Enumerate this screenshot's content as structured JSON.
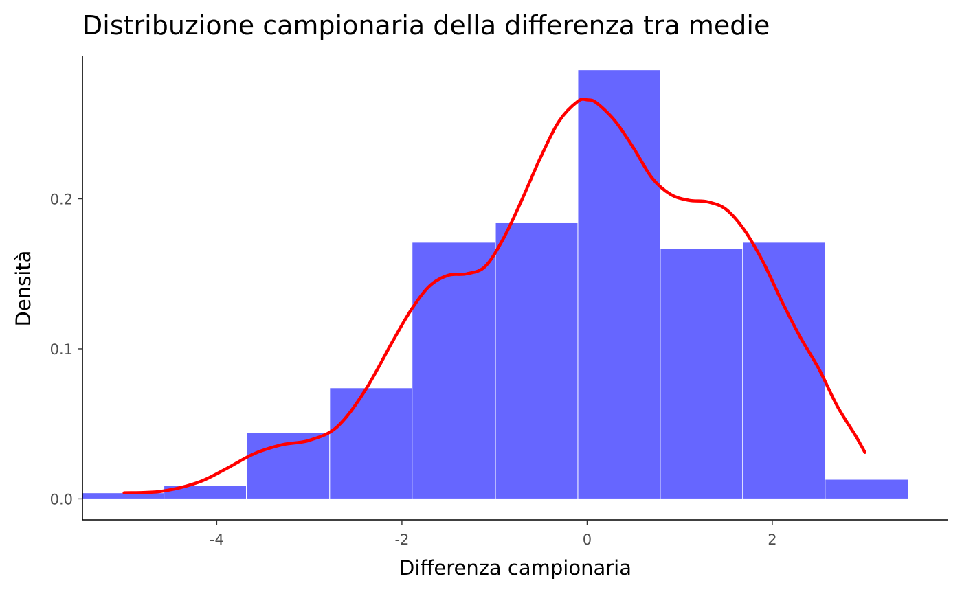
{
  "chart_data": {
    "type": "histogram",
    "title": "Distribuzione campionaria della differenza tra medie",
    "xlabel": "Differenza campionaria",
    "ylabel": "Densità",
    "xlim": [
      -5.45,
      3.9
    ],
    "ylim": [
      -0.014,
      0.295
    ],
    "x_ticks": [
      {
        "value": -4,
        "label": "-4"
      },
      {
        "value": -2,
        "label": "-2"
      },
      {
        "value": 0,
        "label": "0"
      },
      {
        "value": 2,
        "label": "2"
      }
    ],
    "y_ticks": [
      {
        "value": 0.0,
        "label": "0.0"
      },
      {
        "value": 0.1,
        "label": "0.1"
      },
      {
        "value": 0.2,
        "label": "0.2"
      }
    ],
    "grid": false,
    "legend": "none",
    "bars": [
      {
        "x0": -5.46,
        "x1": -4.57,
        "density": 0.004
      },
      {
        "x0": -4.57,
        "x1": -3.68,
        "density": 0.009
      },
      {
        "x0": -3.68,
        "x1": -2.78,
        "density": 0.044
      },
      {
        "x0": -2.78,
        "x1": -1.89,
        "density": 0.074
      },
      {
        "x0": -1.89,
        "x1": -0.99,
        "density": 0.171
      },
      {
        "x0": -0.99,
        "x1": -0.1,
        "density": 0.184
      },
      {
        "x0": -0.1,
        "x1": 0.79,
        "density": 0.286
      },
      {
        "x0": 0.79,
        "x1": 1.68,
        "density": 0.167
      },
      {
        "x0": 1.68,
        "x1": 2.57,
        "density": 0.171
      },
      {
        "x0": 2.57,
        "x1": 3.47,
        "density": 0.013
      }
    ],
    "density_curve": {
      "x": [
        -5.0,
        -4.6,
        -4.2,
        -3.9,
        -3.6,
        -3.3,
        -3.0,
        -2.7,
        -2.4,
        -2.1,
        -1.9,
        -1.7,
        -1.5,
        -1.3,
        -1.1,
        -0.9,
        -0.7,
        -0.5,
        -0.3,
        -0.1,
        0.0,
        0.1,
        0.3,
        0.5,
        0.7,
        0.9,
        1.1,
        1.3,
        1.5,
        1.7,
        1.9,
        2.1,
        2.3,
        2.5,
        2.7,
        2.9,
        3.0
      ],
      "y": [
        0.004,
        0.005,
        0.011,
        0.02,
        0.03,
        0.036,
        0.039,
        0.048,
        0.072,
        0.105,
        0.126,
        0.142,
        0.149,
        0.15,
        0.155,
        0.174,
        0.2,
        0.228,
        0.252,
        0.265,
        0.266,
        0.264,
        0.252,
        0.234,
        0.214,
        0.203,
        0.199,
        0.198,
        0.193,
        0.179,
        0.158,
        0.132,
        0.108,
        0.087,
        0.062,
        0.042,
        0.031
      ]
    },
    "colors": {
      "bar_fill": "#6666ff",
      "bar_edge": "#ffffff",
      "density_line": "#ff0000",
      "axis": "#000000",
      "tick_text": "#4d4d4d"
    }
  }
}
